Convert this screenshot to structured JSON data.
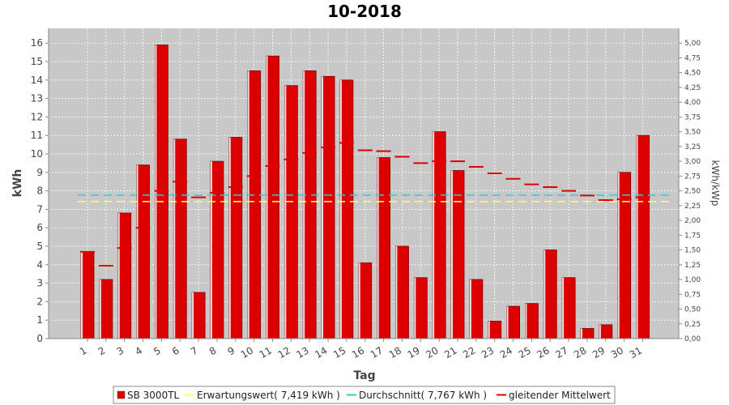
{
  "chart_data": {
    "type": "bar",
    "title": "10-2018",
    "xlabel": "Tag",
    "ylabel": "kWh",
    "y2label": "kWh/kWp",
    "ylim": [
      0,
      16.8
    ],
    "y2lim": [
      0,
      5.25
    ],
    "grid": true,
    "legend_position": "bottom",
    "categories": [
      "1",
      "2",
      "3",
      "4",
      "5",
      "6",
      "7",
      "8",
      "9",
      "10",
      "11",
      "12",
      "13",
      "14",
      "15",
      "16",
      "17",
      "18",
      "19",
      "20",
      "21",
      "22",
      "23",
      "24",
      "25",
      "26",
      "27",
      "28",
      "29",
      "30",
      "31"
    ],
    "y_ticks": [
      "0",
      "1",
      "2",
      "3",
      "4",
      "5",
      "6",
      "7",
      "8",
      "9",
      "10",
      "11",
      "12",
      "13",
      "14",
      "15",
      "16"
    ],
    "y2_ticks": [
      "0,00",
      "0,25",
      "0,50",
      "0,75",
      "1,00",
      "1,25",
      "1,50",
      "1,75",
      "2,00",
      "2,25",
      "2,50",
      "2,75",
      "3,00",
      "3,25",
      "3,50",
      "3,75",
      "4,00",
      "4,25",
      "4,50",
      "4,75",
      "5,00"
    ],
    "series": [
      {
        "name": "SB 3000TL",
        "type": "bar",
        "color": "#dd0000",
        "values": [
          4.7,
          3.2,
          6.8,
          9.4,
          15.9,
          10.8,
          2.5,
          9.6,
          10.9,
          14.5,
          15.3,
          13.7,
          14.5,
          14.2,
          14.0,
          4.1,
          9.8,
          5.0,
          3.3,
          11.2,
          9.1,
          3.2,
          0.95,
          1.75,
          1.9,
          4.8,
          3.3,
          0.55,
          0.75,
          9.0,
          11.0
        ]
      },
      {
        "name": "Erwartungswert( 7,419 kWh )",
        "type": "line",
        "color": "#ffff66",
        "value": 7.419
      },
      {
        "name": "Durchschnitt( 7,767 kWh )",
        "type": "line",
        "color": "#33cccc",
        "value": 7.767
      },
      {
        "name": "gleitender Mittelwert",
        "type": "step",
        "color": "#dd0000",
        "values": [
          4.7,
          3.95,
          4.9,
          6.0,
          8.0,
          8.5,
          7.65,
          7.9,
          8.2,
          8.8,
          9.35,
          9.7,
          10.05,
          10.35,
          10.6,
          10.2,
          10.15,
          9.85,
          9.5,
          9.6,
          9.6,
          9.3,
          8.95,
          8.65,
          8.35,
          8.2,
          8.0,
          7.75,
          7.5,
          7.55,
          7.65
        ]
      }
    ]
  }
}
